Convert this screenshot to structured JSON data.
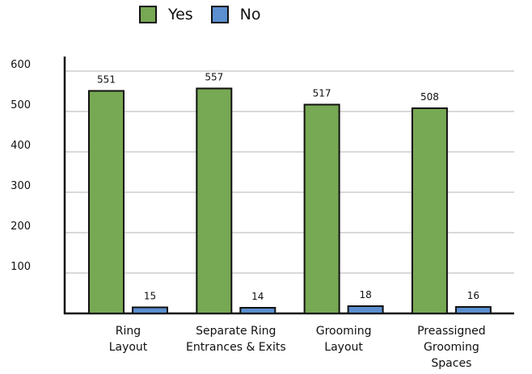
{
  "chart_data": {
    "type": "bar",
    "title": "",
    "xlabel": "",
    "ylabel": "",
    "categories": [
      [
        "Ring",
        "Layout"
      ],
      [
        "Separate Ring",
        "Entrances & Exits"
      ],
      [
        "Grooming",
        "Layout"
      ],
      [
        "Preassigned",
        "Grooming",
        "Spaces"
      ]
    ],
    "series": [
      {
        "name": "Yes",
        "color": "#77a853",
        "values": [
          551,
          557,
          517,
          508
        ]
      },
      {
        "name": "No",
        "color": "#5b8fcf",
        "values": [
          15,
          14,
          18,
          16
        ]
      }
    ],
    "ylim": [
      0,
      600
    ],
    "yticks": [
      100,
      200,
      300,
      400,
      500,
      600
    ],
    "grid": true,
    "legend_position": "top-center",
    "data_labels": true
  }
}
